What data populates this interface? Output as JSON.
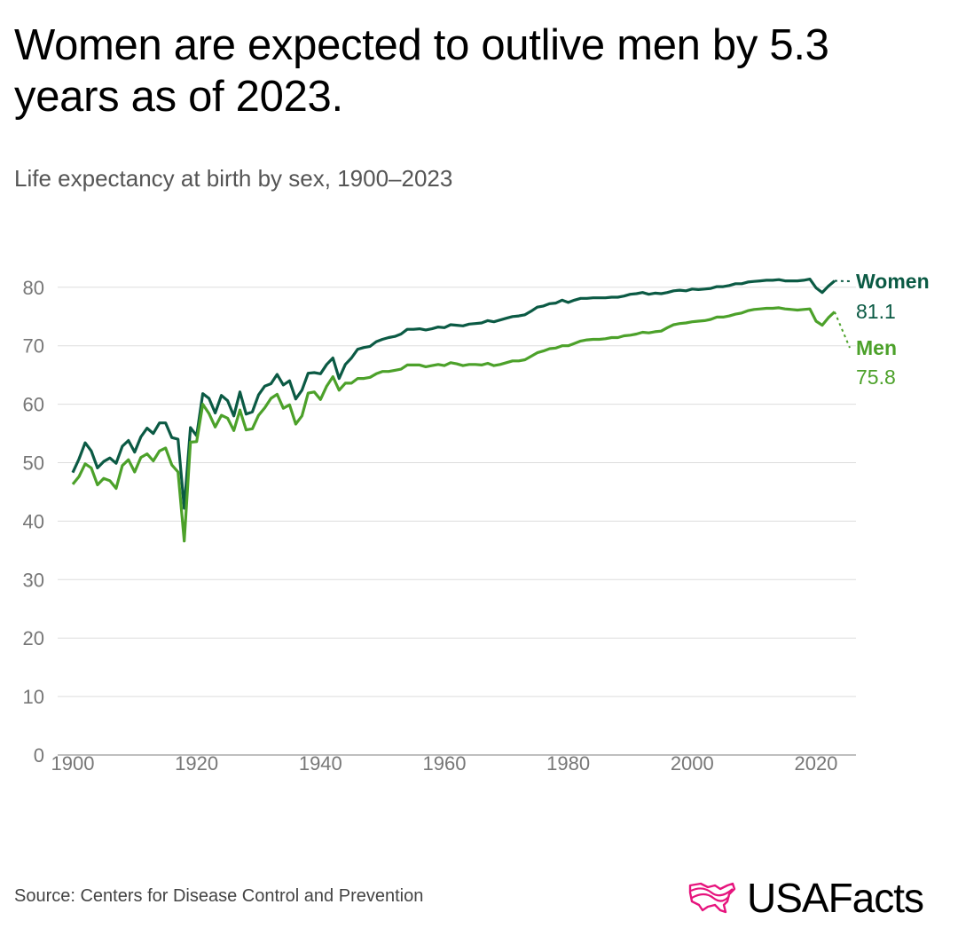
{
  "title": "Women are expected to outlive men by 5.3 years as of 2023.",
  "subtitle": "Life expectancy at birth by sex, 1900–2023",
  "source": "Source: Centers for Disease Control and Prevention",
  "logo": {
    "text": "USAFacts",
    "icon": "usa-map-outline-icon",
    "color": "#e6147d"
  },
  "chart_data": {
    "type": "line",
    "title": "Women are expected to outlive men by 5.3 years as of 2023.",
    "subtitle": "Life expectancy at birth by sex, 1900–2023",
    "xlim": [
      1900,
      2023
    ],
    "ylim": [
      0,
      80
    ],
    "x_ticks": [
      1900,
      1920,
      1940,
      1960,
      1980,
      2000,
      2020
    ],
    "y_ticks": [
      0,
      10,
      20,
      30,
      40,
      50,
      60,
      70,
      80
    ],
    "grid": "horizontal",
    "legend": "end-labels-right",
    "x_start": 1900,
    "series": [
      {
        "name": "Women",
        "end_label": "81.1",
        "color": "#0b5a44",
        "values": [
          48.3,
          50.6,
          53.4,
          52.0,
          49.1,
          50.2,
          50.8,
          49.9,
          52.8,
          53.8,
          51.8,
          54.4,
          55.9,
          55.0,
          56.8,
          56.8,
          54.3,
          54.0,
          42.2,
          56.0,
          54.6,
          61.8,
          61.0,
          58.5,
          61.5,
          60.6,
          58.0,
          62.1,
          58.3,
          58.7,
          61.6,
          63.1,
          63.5,
          65.1,
          63.3,
          64.0,
          60.9,
          62.4,
          65.3,
          65.4,
          65.2,
          66.8,
          67.9,
          64.4,
          66.8,
          67.9,
          69.4,
          69.7,
          69.9,
          70.7,
          71.1,
          71.4,
          71.6,
          72.0,
          72.8,
          72.8,
          72.9,
          72.7,
          72.9,
          73.2,
          73.1,
          73.6,
          73.5,
          73.4,
          73.7,
          73.8,
          73.9,
          74.3,
          74.1,
          74.4,
          74.7,
          75.0,
          75.1,
          75.3,
          75.9,
          76.6,
          76.8,
          77.2,
          77.3,
          77.8,
          77.4,
          77.8,
          78.1,
          78.1,
          78.2,
          78.2,
          78.2,
          78.3,
          78.3,
          78.5,
          78.8,
          78.9,
          79.1,
          78.8,
          79.0,
          78.9,
          79.1,
          79.4,
          79.5,
          79.4,
          79.7,
          79.6,
          79.7,
          79.8,
          80.1,
          80.1,
          80.3,
          80.6,
          80.6,
          80.9,
          81.0,
          81.1,
          81.2,
          81.2,
          81.3,
          81.1,
          81.1,
          81.1,
          81.2,
          81.4,
          79.9,
          79.1,
          80.2,
          81.1
        ]
      },
      {
        "name": "Men",
        "end_label": "75.8",
        "color": "#4ca12a",
        "values": [
          46.3,
          47.6,
          49.8,
          49.1,
          46.2,
          47.3,
          46.9,
          45.6,
          49.5,
          50.5,
          48.4,
          50.9,
          51.5,
          50.3,
          52.0,
          52.5,
          49.6,
          48.4,
          36.6,
          53.5,
          53.6,
          60.0,
          58.4,
          56.1,
          58.1,
          57.6,
          55.5,
          59.0,
          55.6,
          55.8,
          58.1,
          59.4,
          61.0,
          61.7,
          59.3,
          59.9,
          56.6,
          58.0,
          61.9,
          62.1,
          60.8,
          63.1,
          64.7,
          62.4,
          63.6,
          63.6,
          64.4,
          64.4,
          64.6,
          65.2,
          65.6,
          65.6,
          65.8,
          66.0,
          66.7,
          66.7,
          66.7,
          66.4,
          66.6,
          66.8,
          66.6,
          67.1,
          66.9,
          66.6,
          66.8,
          66.8,
          66.7,
          67.0,
          66.6,
          66.8,
          67.1,
          67.4,
          67.4,
          67.6,
          68.2,
          68.8,
          69.1,
          69.5,
          69.6,
          70.0,
          70.0,
          70.4,
          70.8,
          71.0,
          71.1,
          71.1,
          71.2,
          71.4,
          71.4,
          71.7,
          71.8,
          72.0,
          72.3,
          72.2,
          72.4,
          72.5,
          73.1,
          73.6,
          73.8,
          73.9,
          74.1,
          74.2,
          74.3,
          74.5,
          74.9,
          74.9,
          75.1,
          75.4,
          75.6,
          76.0,
          76.2,
          76.3,
          76.4,
          76.4,
          76.5,
          76.3,
          76.2,
          76.1,
          76.2,
          76.3,
          74.2,
          73.5,
          74.8,
          75.8
        ]
      }
    ]
  }
}
